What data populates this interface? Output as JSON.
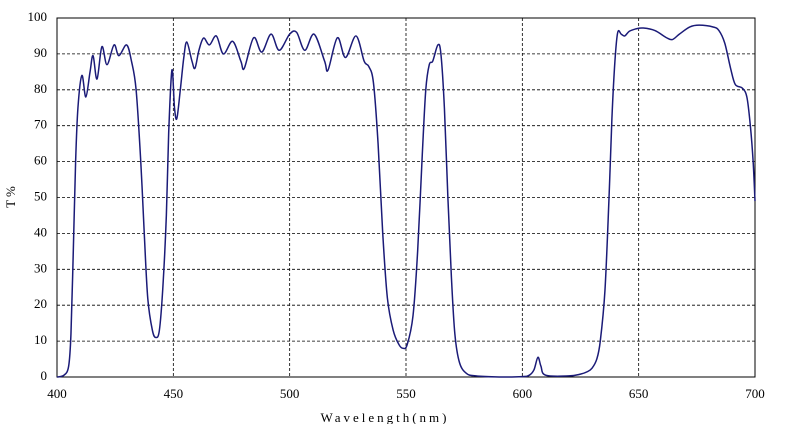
{
  "chart_data": {
    "type": "line",
    "xlabel": "Wavelength(nm)",
    "ylabel": "T %",
    "x": [
      400,
      403,
      405,
      406,
      407,
      408,
      409,
      410.7,
      412.4,
      414.2,
      415.5,
      417.2,
      419.3,
      421.5,
      424.5,
      426.6,
      429.9,
      432,
      434,
      436,
      437.5,
      439,
      441,
      442.5,
      444,
      445.5,
      447,
      448,
      449.4,
      450.5,
      451.5,
      453,
      454.5,
      455.8,
      458,
      459.3,
      461,
      463,
      465.5,
      468.5,
      471.5,
      475.5,
      479,
      480.5,
      484.5,
      488,
      492,
      495.5,
      500,
      503,
      506.5,
      510.5,
      515,
      516.5,
      520.5,
      524,
      528.5,
      532,
      534,
      536,
      538,
      540,
      542,
      544.5,
      547,
      548.7,
      550.5,
      553,
      555,
      557,
      558.5,
      560,
      561.5,
      563.7,
      565,
      566.5,
      568,
      569.5,
      571,
      573,
      576,
      580,
      590,
      600,
      603,
      605,
      606.7,
      608,
      610,
      620,
      625,
      628,
      630,
      632,
      633.5,
      635.5,
      637.2,
      638.5,
      639.8,
      641,
      642.5,
      644,
      646,
      649,
      652,
      657,
      662,
      664.5,
      667.5,
      672,
      676,
      682,
      684.5,
      687,
      689.5,
      691.5,
      694.5,
      696.5,
      698,
      699.2,
      700
    ],
    "series": [
      {
        "name": "T",
        "color": "#1b1b78",
        "values": [
          0,
          0.5,
          3,
          12,
          35,
          60,
          75,
          84,
          78,
          85,
          89.5,
          83,
          92,
          87,
          92.5,
          89.5,
          92.5,
          88,
          80,
          60,
          40,
          22,
          13,
          11,
          13,
          25,
          45,
          68,
          85.5,
          75,
          72,
          80,
          89,
          93.3,
          88,
          86,
          91,
          94.4,
          92.5,
          95,
          90,
          93.5,
          88,
          86,
          94.5,
          90.5,
          95.5,
          91,
          95.5,
          96,
          91,
          95.5,
          88,
          85.5,
          94.5,
          89,
          95,
          88,
          86.5,
          82,
          65,
          40,
          22,
          13,
          9,
          8,
          9,
          17,
          35,
          62,
          80,
          87,
          88,
          92.5,
          90,
          75,
          50,
          28,
          12,
          4,
          1,
          0.3,
          0,
          0.1,
          0.5,
          2,
          5.5,
          3,
          0.5,
          0.3,
          0.8,
          1.5,
          2.5,
          5,
          10,
          24,
          49,
          72,
          88,
          96,
          95.5,
          95,
          96.3,
          97,
          97.2,
          96.5,
          94.5,
          94,
          95.5,
          97.5,
          98,
          97.5,
          96.5,
          93,
          86,
          81.5,
          80.5,
          78,
          70,
          60,
          49
        ]
      }
    ],
    "xlim": [
      400,
      700
    ],
    "xticks": [
      400,
      450,
      500,
      550,
      600,
      650,
      700
    ],
    "ylim": [
      0,
      100
    ],
    "yticks": [
      0,
      10,
      20,
      30,
      40,
      50,
      60,
      70,
      80,
      90,
      100
    ],
    "grid": true
  }
}
